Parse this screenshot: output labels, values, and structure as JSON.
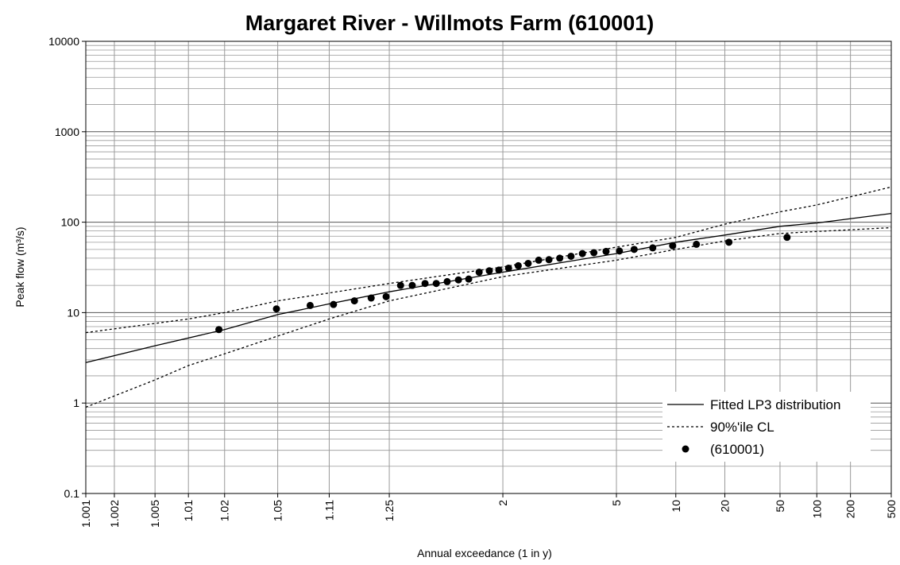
{
  "chart_data": {
    "type": "probability-scatter-line",
    "title": "Margaret River - Willmots Farm (610001)",
    "x_label": "Annual exceedance (1 in y)",
    "y_label": "Peak flow (m³/s)",
    "xscale": "probability",
    "yscale": "log",
    "grid": true,
    "legend": "lower right",
    "xlim": [
      1.001,
      500
    ],
    "xticks": [
      1.001,
      1.002,
      1.005,
      1.01,
      1.02,
      1.05,
      1.11,
      1.25,
      2,
      5,
      10,
      20,
      50,
      100,
      200,
      500
    ],
    "ylim": [
      0.1,
      10000
    ],
    "yticks": [
      0.1,
      1,
      10,
      100,
      1000,
      10000
    ],
    "series": [
      {
        "name": "Fitted LP3 distribution",
        "kind": "line",
        "style": "solid",
        "color": "#000000",
        "x": [
          1.001,
          1.005,
          1.02,
          1.05,
          1.11,
          1.25,
          2,
          5,
          10,
          20,
          50,
          100,
          500
        ],
        "values": [
          2.8,
          4.3,
          6.5,
          9.5,
          12.5,
          17,
          28,
          45,
          60,
          72,
          90,
          98,
          125
        ]
      },
      {
        "name": "90%'ile CL",
        "kind": "line",
        "style": "dashed",
        "color": "#000000",
        "x": [
          1.001,
          1.01,
          1.02,
          1.05,
          1.11,
          1.25,
          2,
          5,
          10,
          20,
          50,
          100,
          500
        ],
        "values": [
          6,
          8.5,
          10,
          13.5,
          16.5,
          21,
          32,
          53,
          68,
          95,
          130,
          155,
          245
        ]
      },
      {
        "name": null,
        "kind": "line",
        "style": "dashed",
        "color": "#000000",
        "x": [
          1.001,
          1.005,
          1.01,
          1.02,
          1.05,
          1.11,
          1.25,
          2,
          5,
          10,
          20,
          50,
          100,
          500
        ],
        "values": [
          0.9,
          1.8,
          2.6,
          3.5,
          5.5,
          8.5,
          13.5,
          25,
          38,
          50,
          62,
          75,
          79,
          87
        ]
      },
      {
        "name": "(610001)",
        "kind": "scatter",
        "color": "#000000",
        "x": [
          1.018,
          1.049,
          1.083,
          1.117,
          1.157,
          1.197,
          1.24,
          1.289,
          1.335,
          1.393,
          1.451,
          1.515,
          1.59,
          1.667,
          1.755,
          1.852,
          1.954,
          2.07,
          2.2,
          2.35,
          2.53,
          2.73,
          2.97,
          3.26,
          3.6,
          4.0,
          4.5,
          5.16,
          6.05,
          7.5,
          9.6,
          13.2,
          21.3,
          56.8
        ],
        "values": [
          6.5,
          11,
          12,
          12.3,
          13.5,
          14.5,
          15,
          20,
          20,
          21,
          21,
          22,
          23,
          23.5,
          28,
          29,
          29.5,
          31,
          33,
          35,
          38,
          38.5,
          40,
          42,
          45,
          46,
          47.5,
          48,
          50,
          52,
          55,
          57,
          60,
          68
        ]
      }
    ]
  }
}
